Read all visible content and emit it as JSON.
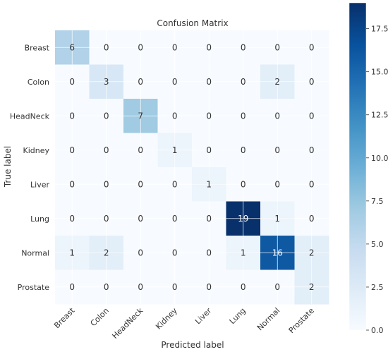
{
  "chart_data": {
    "type": "heatmap",
    "title": "Confusion Matrix",
    "xlabel": "Predicted label",
    "ylabel": "True label",
    "x_categories": [
      "Breast",
      "Colon",
      "HeadNeck",
      "Kidney",
      "Liver",
      "Lung",
      "Normal",
      "Prostate"
    ],
    "y_categories": [
      "Breast",
      "Colon",
      "HeadNeck",
      "Kidney",
      "Liver",
      "Lung",
      "Normal",
      "Prostate"
    ],
    "values": [
      [
        6,
        0,
        0,
        0,
        0,
        0,
        0,
        0
      ],
      [
        0,
        3,
        0,
        0,
        0,
        0,
        2,
        0
      ],
      [
        0,
        0,
        7,
        0,
        0,
        0,
        0,
        0
      ],
      [
        0,
        0,
        0,
        1,
        0,
        0,
        0,
        0
      ],
      [
        0,
        0,
        0,
        0,
        1,
        0,
        0,
        0
      ],
      [
        0,
        0,
        0,
        0,
        0,
        19,
        1,
        0
      ],
      [
        1,
        2,
        0,
        0,
        0,
        1,
        16,
        2
      ],
      [
        0,
        0,
        0,
        0,
        0,
        0,
        0,
        2
      ]
    ],
    "colorscale": "Blues",
    "vmin": 0,
    "vmax": 19,
    "colorbar_ticks": [
      "0.0",
      "2.5",
      "5.0",
      "7.5",
      "10.0",
      "12.5",
      "15.0",
      "17.5"
    ],
    "colorbar_tick_values": [
      0,
      2.5,
      5,
      7.5,
      10,
      12.5,
      15,
      17.5
    ],
    "grid": true,
    "colors": {
      "low": "#f7fbff",
      "high": "#08306b"
    }
  }
}
